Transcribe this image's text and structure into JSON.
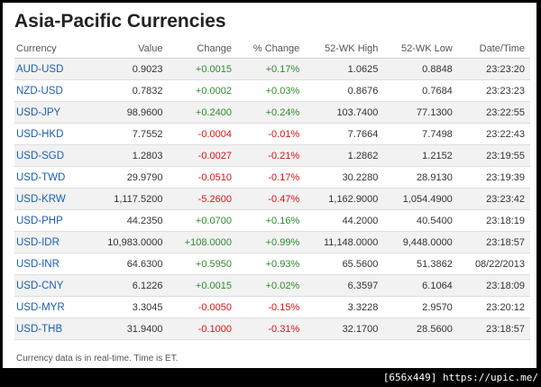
{
  "title": "Asia-Pacific Currencies",
  "columns": [
    "Currency",
    "Value",
    "Change",
    "% Change",
    "52-WK High",
    "52-WK Low",
    "Date/Time"
  ],
  "rows": [
    {
      "symbol": "AUD-USD",
      "value": "0.9023",
      "change": "+0.0015",
      "pct": "+0.17%",
      "high": "1.0625",
      "low": "0.8848",
      "time": "23:23:20",
      "dir": "pos"
    },
    {
      "symbol": "NZD-USD",
      "value": "0.7832",
      "change": "+0.0002",
      "pct": "+0.03%",
      "high": "0.8676",
      "low": "0.7684",
      "time": "23:23:23",
      "dir": "pos"
    },
    {
      "symbol": "USD-JPY",
      "value": "98.9600",
      "change": "+0.2400",
      "pct": "+0.24%",
      "high": "103.7400",
      "low": "77.1300",
      "time": "23:22:55",
      "dir": "pos"
    },
    {
      "symbol": "USD-HKD",
      "value": "7.7552",
      "change": "-0.0004",
      "pct": "-0.01%",
      "high": "7.7664",
      "low": "7.7498",
      "time": "23:22:43",
      "dir": "neg"
    },
    {
      "symbol": "USD-SGD",
      "value": "1.2803",
      "change": "-0.0027",
      "pct": "-0.21%",
      "high": "1.2862",
      "low": "1.2152",
      "time": "23:19:55",
      "dir": "neg"
    },
    {
      "symbol": "USD-TWD",
      "value": "29.9790",
      "change": "-0.0510",
      "pct": "-0.17%",
      "high": "30.2280",
      "low": "28.9130",
      "time": "23:19:39",
      "dir": "neg"
    },
    {
      "symbol": "USD-KRW",
      "value": "1,117.5200",
      "change": "-5.2600",
      "pct": "-0.47%",
      "high": "1,162.9000",
      "low": "1,054.4900",
      "time": "23:23:42",
      "dir": "neg"
    },
    {
      "symbol": "USD-PHP",
      "value": "44.2350",
      "change": "+0.0700",
      "pct": "+0.16%",
      "high": "44.2000",
      "low": "40.5400",
      "time": "23:18:19",
      "dir": "pos"
    },
    {
      "symbol": "USD-IDR",
      "value": "10,983.0000",
      "change": "+108.0000",
      "pct": "+0.99%",
      "high": "11,148.0000",
      "low": "9,448.0000",
      "time": "23:18:57",
      "dir": "pos"
    },
    {
      "symbol": "USD-INR",
      "value": "64.6300",
      "change": "+0.5950",
      "pct": "+0.93%",
      "high": "65.5600",
      "low": "51.3862",
      "time": "08/22/2013",
      "dir": "pos"
    },
    {
      "symbol": "USD-CNY",
      "value": "6.1226",
      "change": "+0.0015",
      "pct": "+0.02%",
      "high": "6.3597",
      "low": "6.1064",
      "time": "23:18:09",
      "dir": "pos"
    },
    {
      "symbol": "USD-MYR",
      "value": "3.3045",
      "change": "-0.0050",
      "pct": "-0.15%",
      "high": "3.3228",
      "low": "2.9570",
      "time": "23:20:12",
      "dir": "neg"
    },
    {
      "symbol": "USD-THB",
      "value": "31.9400",
      "change": "-0.1000",
      "pct": "-0.31%",
      "high": "32.1700",
      "low": "28.5600",
      "time": "23:18:57",
      "dir": "neg"
    }
  ],
  "footnote": "Currency data is in real-time. Time is ET.",
  "watermark": "[656x449] https://upic.me/",
  "colors": {
    "positive": "#2e8b2e",
    "negative": "#dd1111",
    "link": "#1a5fb4"
  }
}
